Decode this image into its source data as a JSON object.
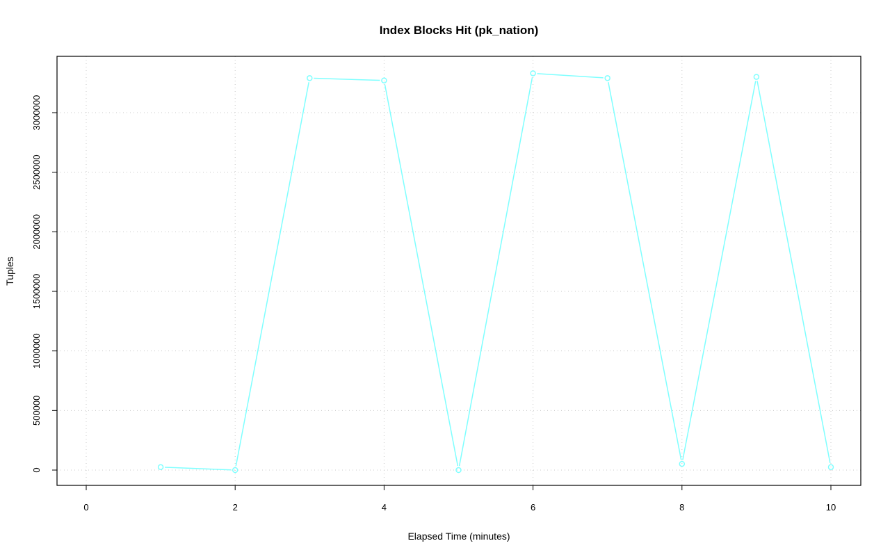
{
  "chart_data": {
    "type": "line",
    "title": "Index Blocks Hit (pk_nation)",
    "xlabel": "Elapsed Time (minutes)",
    "ylabel": "Tuples",
    "xlim": [
      0,
      10
    ],
    "ylim": [
      0,
      3500000
    ],
    "xticks": [
      0,
      2,
      4,
      6,
      8,
      10
    ],
    "yticks": [
      0,
      500000,
      1000000,
      1500000,
      2000000,
      2500000,
      3000000
    ],
    "grid": true,
    "series": [
      {
        "color": "#7fffff",
        "marker": "open-circle",
        "x": [
          1,
          2,
          3,
          4,
          5,
          6,
          7,
          8,
          9,
          10
        ],
        "y": [
          25000,
          0,
          3290000,
          3270000,
          0,
          3330000,
          3290000,
          52000,
          3300000,
          25000
        ]
      }
    ]
  }
}
